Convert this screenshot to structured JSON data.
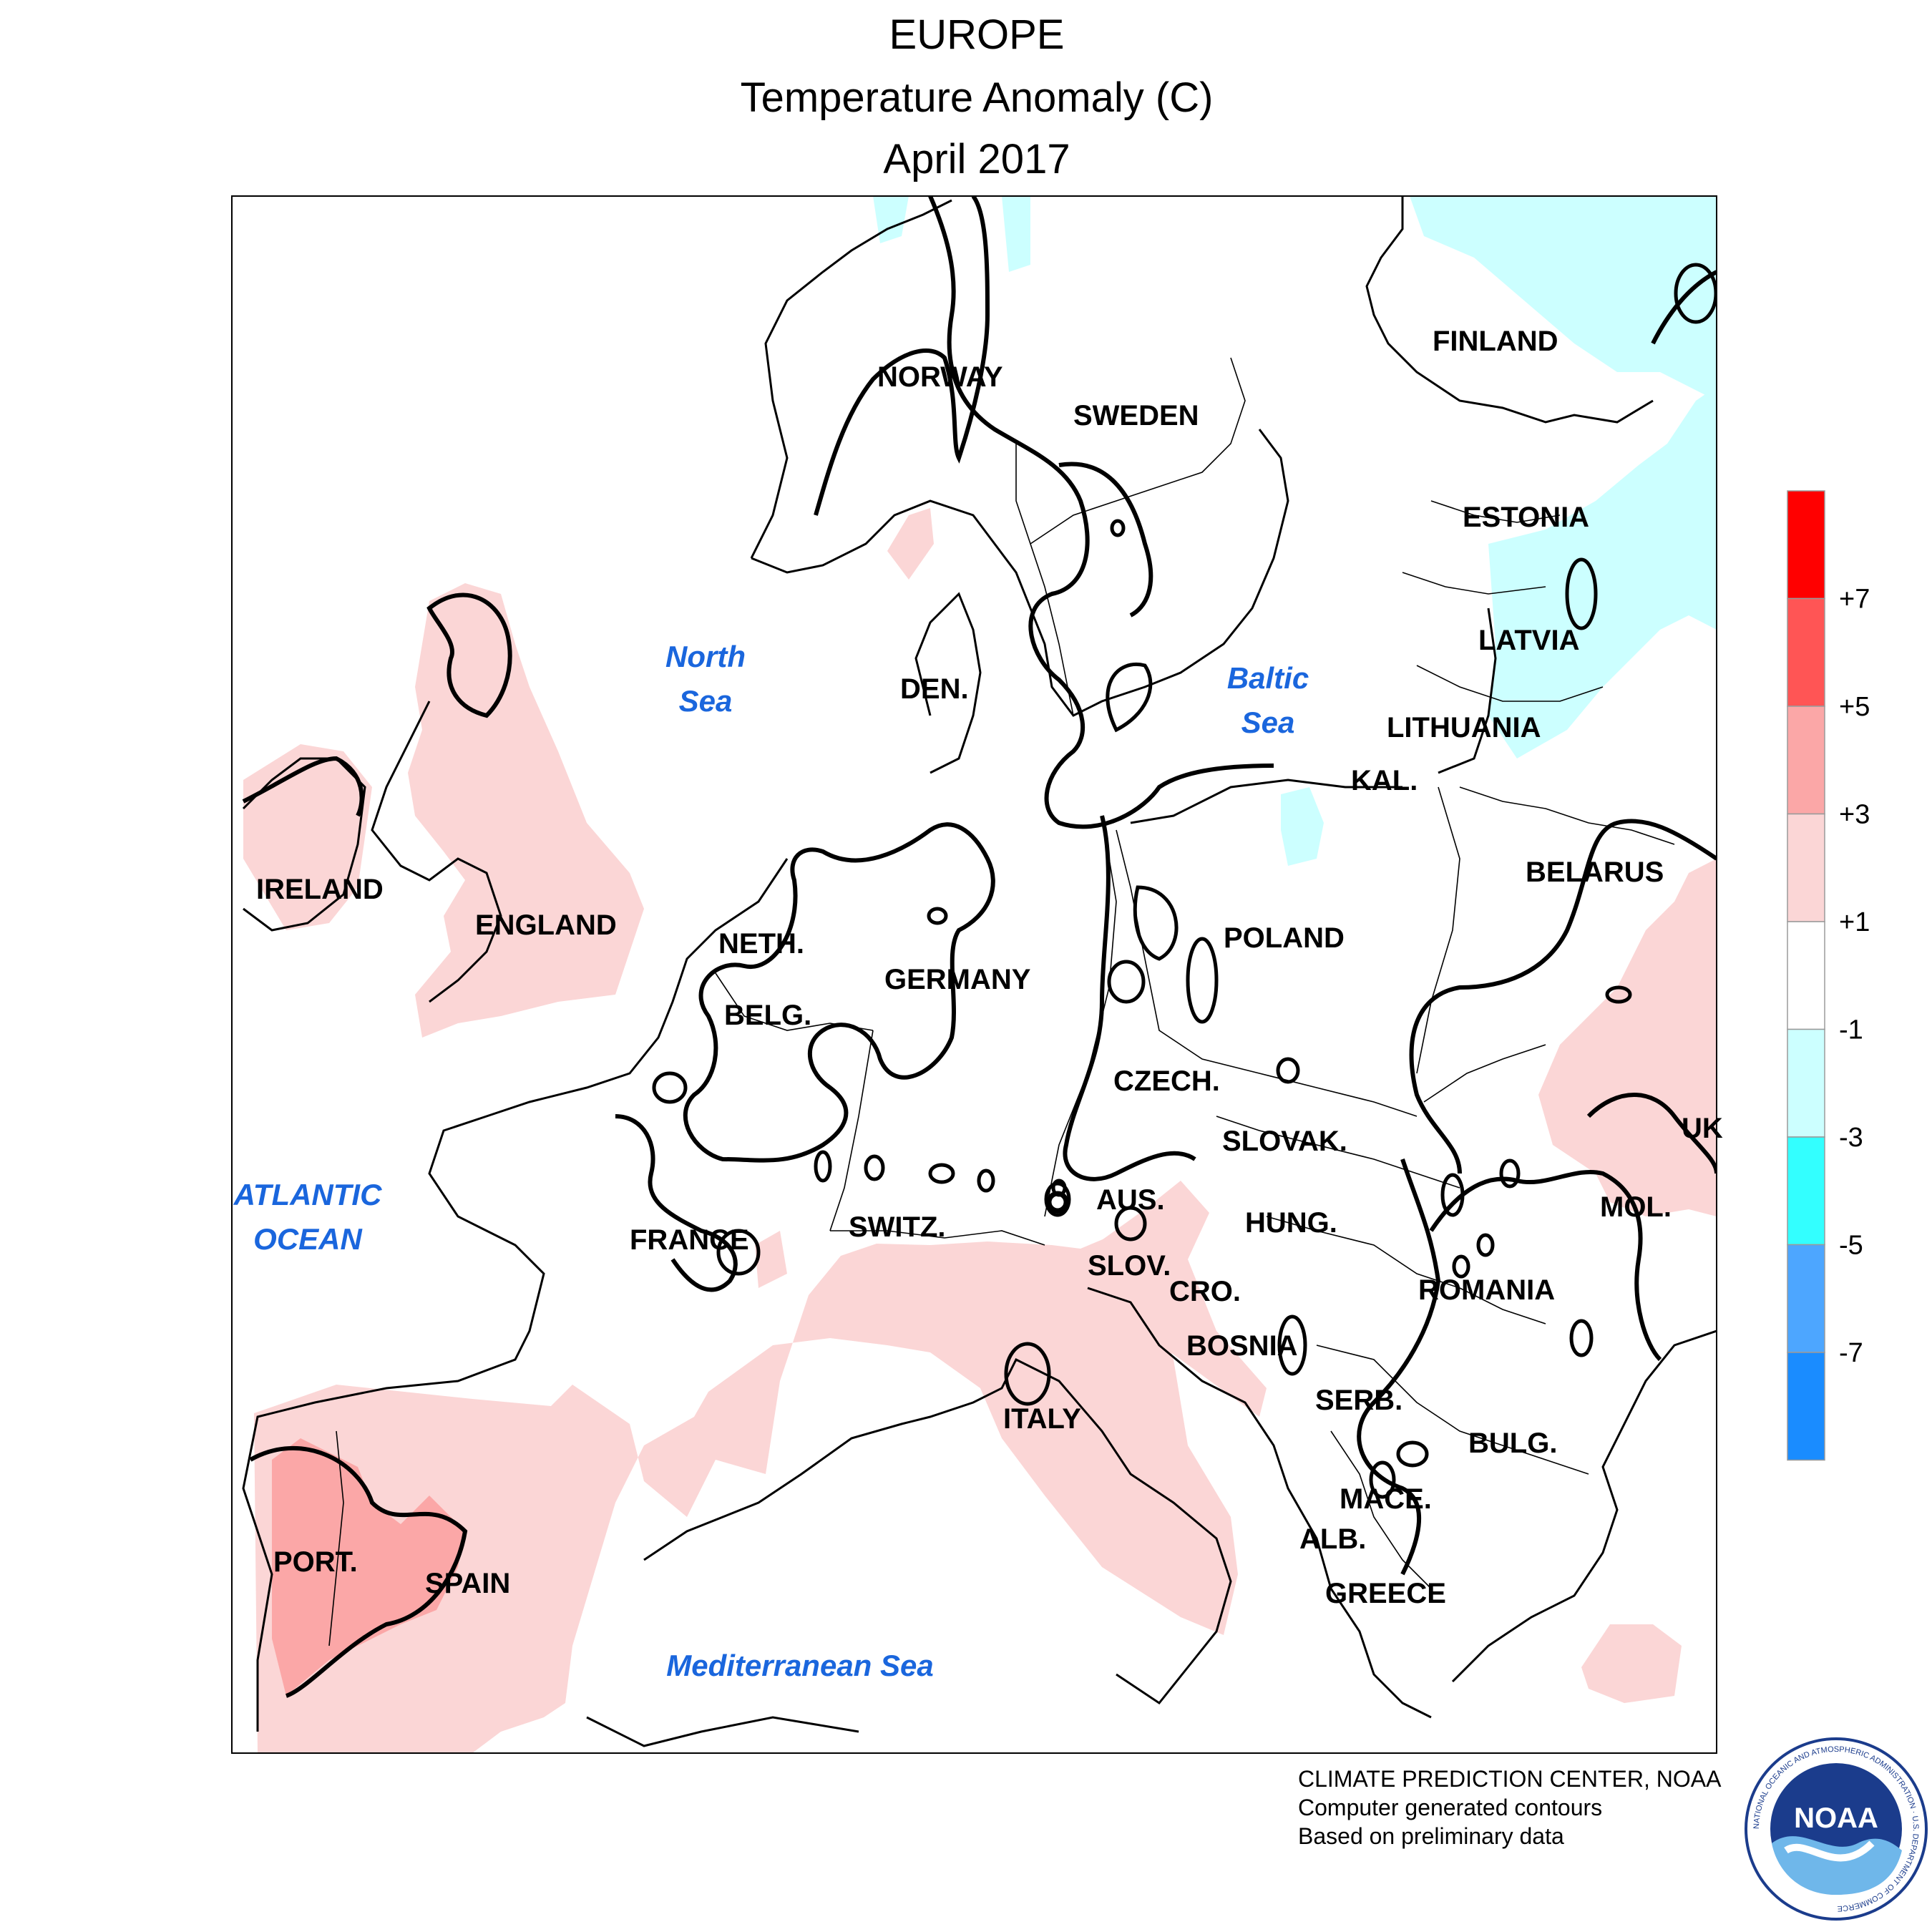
{
  "header": {
    "region": "EUROPE",
    "variable": "Temperature Anomaly (C)",
    "period": "April 2017"
  },
  "legend": {
    "labels": [
      "+7",
      "+5",
      "+3",
      "+1",
      "-1",
      "-3",
      "-5",
      "-7"
    ],
    "bins": [
      {
        "range": "> +7",
        "color": "#ff0000"
      },
      {
        "range": "+5 to +7",
        "color": "#ff5555"
      },
      {
        "range": "+3 to +5",
        "color": "#fba7a7"
      },
      {
        "range": "+1 to +3",
        "color": "#fbd6d6"
      },
      {
        "range": "-1 to +1",
        "color": "#ffffff"
      },
      {
        "range": "-3 to -1",
        "color": "#ccffff"
      },
      {
        "range": "-5 to -3",
        "color": "#33ffff"
      },
      {
        "range": "-7 to -5",
        "color": "#4da6ff"
      },
      {
        "range": "< -7",
        "color": "#1a8cff"
      }
    ]
  },
  "countries": [
    "FINLAND",
    "NORWAY",
    "SWEDEN",
    "ESTONIA",
    "LATVIA",
    "DEN.",
    "LITHUANIA",
    "KAL.",
    "IRELAND",
    "ENGLAND",
    "NETH.",
    "BELG.",
    "GERMANY",
    "POLAND",
    "BELARUS",
    "CZECH.",
    "SLOVAK.",
    "UK",
    "AUS.",
    "HUNG.",
    "MOL.",
    "FRANCE",
    "SWITZ.",
    "SLOV.",
    "CRO.",
    "ROMANIA",
    "BOSNIA",
    "SERB.",
    "BULG.",
    "ITALY",
    "MACE.",
    "ALB.",
    "GREECE",
    "PORT.",
    "SPAIN"
  ],
  "water_bodies": [
    {
      "lines": [
        "North",
        "Sea"
      ]
    },
    {
      "lines": [
        "Baltic",
        "Sea"
      ]
    },
    {
      "lines": [
        "ATLANTIC",
        "OCEAN"
      ]
    },
    {
      "lines": [
        "Mediterranean Sea"
      ]
    }
  ],
  "credits": {
    "line1": "CLIMATE PREDICTION CENTER, NOAA",
    "line2": "Computer generated contours",
    "line3": "Based on preliminary data"
  },
  "logo": {
    "text": "NOAA",
    "ring_text": "NATIONAL OCEANIC AND ATMOSPHERIC ADMINISTRATION · U.S. DEPARTMENT OF COMMERCE"
  },
  "colors": {
    "warm_1_3": "#fbd6d6",
    "warm_3_5": "#fba7a7",
    "cool_m1_m3": "#ccffff",
    "water_label": "#1a66dd",
    "contour": "#000000"
  }
}
